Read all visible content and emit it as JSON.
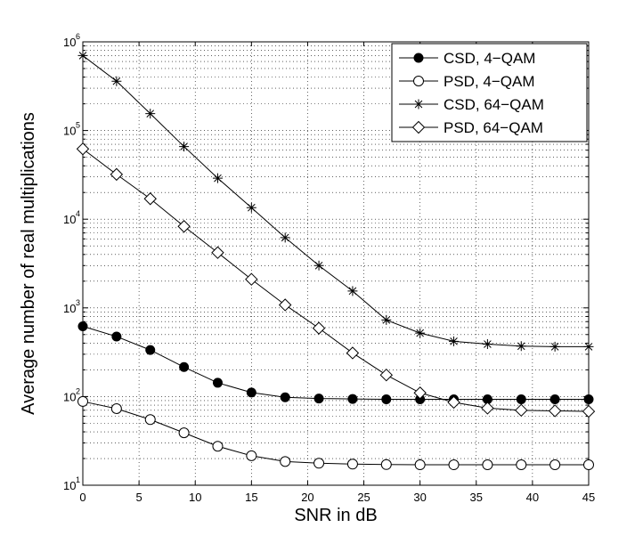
{
  "chart_data": {
    "type": "line",
    "title": "",
    "xlabel": "SNR in dB",
    "ylabel": "Average number of real multiplications",
    "xlim": [
      0,
      45
    ],
    "ylim_log10": [
      1,
      6
    ],
    "y_scale": "log",
    "grid": true,
    "legend_position": "top-right",
    "x_ticks": [
      0,
      5,
      10,
      15,
      20,
      25,
      30,
      35,
      40,
      45
    ],
    "y_tick_labels": [
      {
        "exp": 1,
        "base": "10",
        "sup": "1"
      },
      {
        "exp": 2,
        "base": "10",
        "sup": "2"
      },
      {
        "exp": 3,
        "base": "10",
        "sup": "3"
      },
      {
        "exp": 4,
        "base": "10",
        "sup": "4"
      },
      {
        "exp": 5,
        "base": "10",
        "sup": "5"
      },
      {
        "exp": 6,
        "base": "10",
        "sup": "6"
      }
    ],
    "x": [
      0,
      3,
      6,
      9,
      12,
      15,
      18,
      21,
      24,
      27,
      30,
      33,
      36,
      39,
      42,
      45
    ],
    "series": [
      {
        "name": "CSD, 4−QAM",
        "marker": "filled-circle",
        "values": [
          620,
          475,
          335,
          215,
          143,
          111,
          98,
          95,
          94,
          93,
          93,
          93,
          93,
          93,
          93,
          93
        ]
      },
      {
        "name": "PSD, 4−QAM",
        "marker": "open-circle",
        "values": [
          88,
          73,
          55,
          39,
          27.5,
          21.5,
          18.5,
          17.7,
          17.3,
          17.1,
          17,
          17,
          17,
          17,
          17,
          17
        ]
      },
      {
        "name": "CSD, 64−QAM",
        "marker": "star",
        "values": [
          700000,
          360000,
          155000,
          66000,
          29000,
          13500,
          6200,
          3000,
          1550,
          730,
          520,
          420,
          390,
          370,
          365,
          365
        ]
      },
      {
        "name": "PSD, 64−QAM",
        "marker": "diamond",
        "values": [
          62000,
          32000,
          17000,
          8300,
          4200,
          2100,
          1080,
          590,
          310,
          175,
          110,
          86,
          74,
          70,
          69,
          68
        ]
      }
    ]
  }
}
